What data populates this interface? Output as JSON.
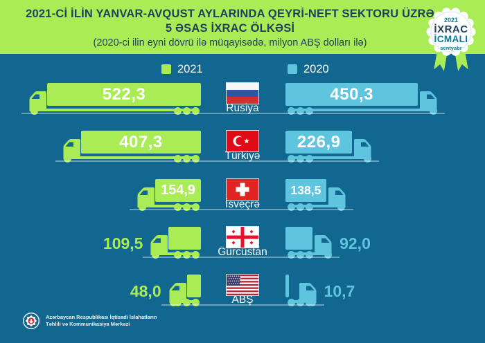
{
  "header": {
    "title_line1": "2021-Cİ İLİN YANVAR-AVQUST AYLARINDA QEYRİ-NEFT SEKTORU ÜZRƏ",
    "title_line2": "5 ƏSAS İXRAC ÖLKƏSİ",
    "subtitle": "(2020-ci ilin eyni dövrü ilə müqayisədə, milyon ABŞ dolları ilə)"
  },
  "badge": {
    "year": "2021",
    "line1": "İXRAC",
    "line2": "İCMALI",
    "month": "sentyabr"
  },
  "legend": [
    {
      "label": "2021",
      "color": "#A9EC55"
    },
    {
      "label": "2020",
      "color": "#5FC4DE"
    }
  ],
  "footer": {
    "emblem_icon": "azerbaijan-coat-of-arms",
    "org_line1": "Azərbaycan Respublikası İqtisadi İslahatların",
    "org_line2": "Təhlili və Kommunikasiya Mərkəzi"
  },
  "colors": {
    "background": "#11678F",
    "band_green": "#A9EC55",
    "truck_2021": "#A9EC55",
    "truck_2020": "#5FC4DE",
    "title_navy": "#1E415E",
    "badge_teal": "#0D7A93",
    "ground_line": "rgba(255,255,255,0.38)"
  },
  "chart_data": {
    "type": "bar",
    "variant": "paired horizontal pictogram (trucks), length encodes value",
    "title": "2021-ci ilin yanvar-avqust aylarında qeyri-neft sektoru üzrə 5 əsas ixrac ölkəsi",
    "unit": "milyon ABŞ dolları",
    "comparison": "2020-ci ilin eyni dövrü ilə müqayisədə",
    "categories": [
      "Rusiya",
      "Türkiyə",
      "İsveçrə",
      "Gürcüstan",
      "ABŞ"
    ],
    "flags": [
      "russia-flag",
      "turkey-flag",
      "switzerland-flag",
      "georgia-flag",
      "usa-flag"
    ],
    "legend_position": "top",
    "series": [
      {
        "name": "2021",
        "color": "#A9EC55",
        "values": [
          522.3,
          407.3,
          154.9,
          109.5,
          48.0
        ],
        "labels": [
          "522,3",
          "407,3",
          "154,9",
          "109,5",
          "48,0"
        ]
      },
      {
        "name": "2020",
        "color": "#5FC4DE",
        "values": [
          450.3,
          226.9,
          138.5,
          92.0,
          10.7
        ],
        "labels": [
          "450,3",
          "226,9",
          "138,5",
          "92,0",
          "10,7"
        ]
      }
    ]
  }
}
